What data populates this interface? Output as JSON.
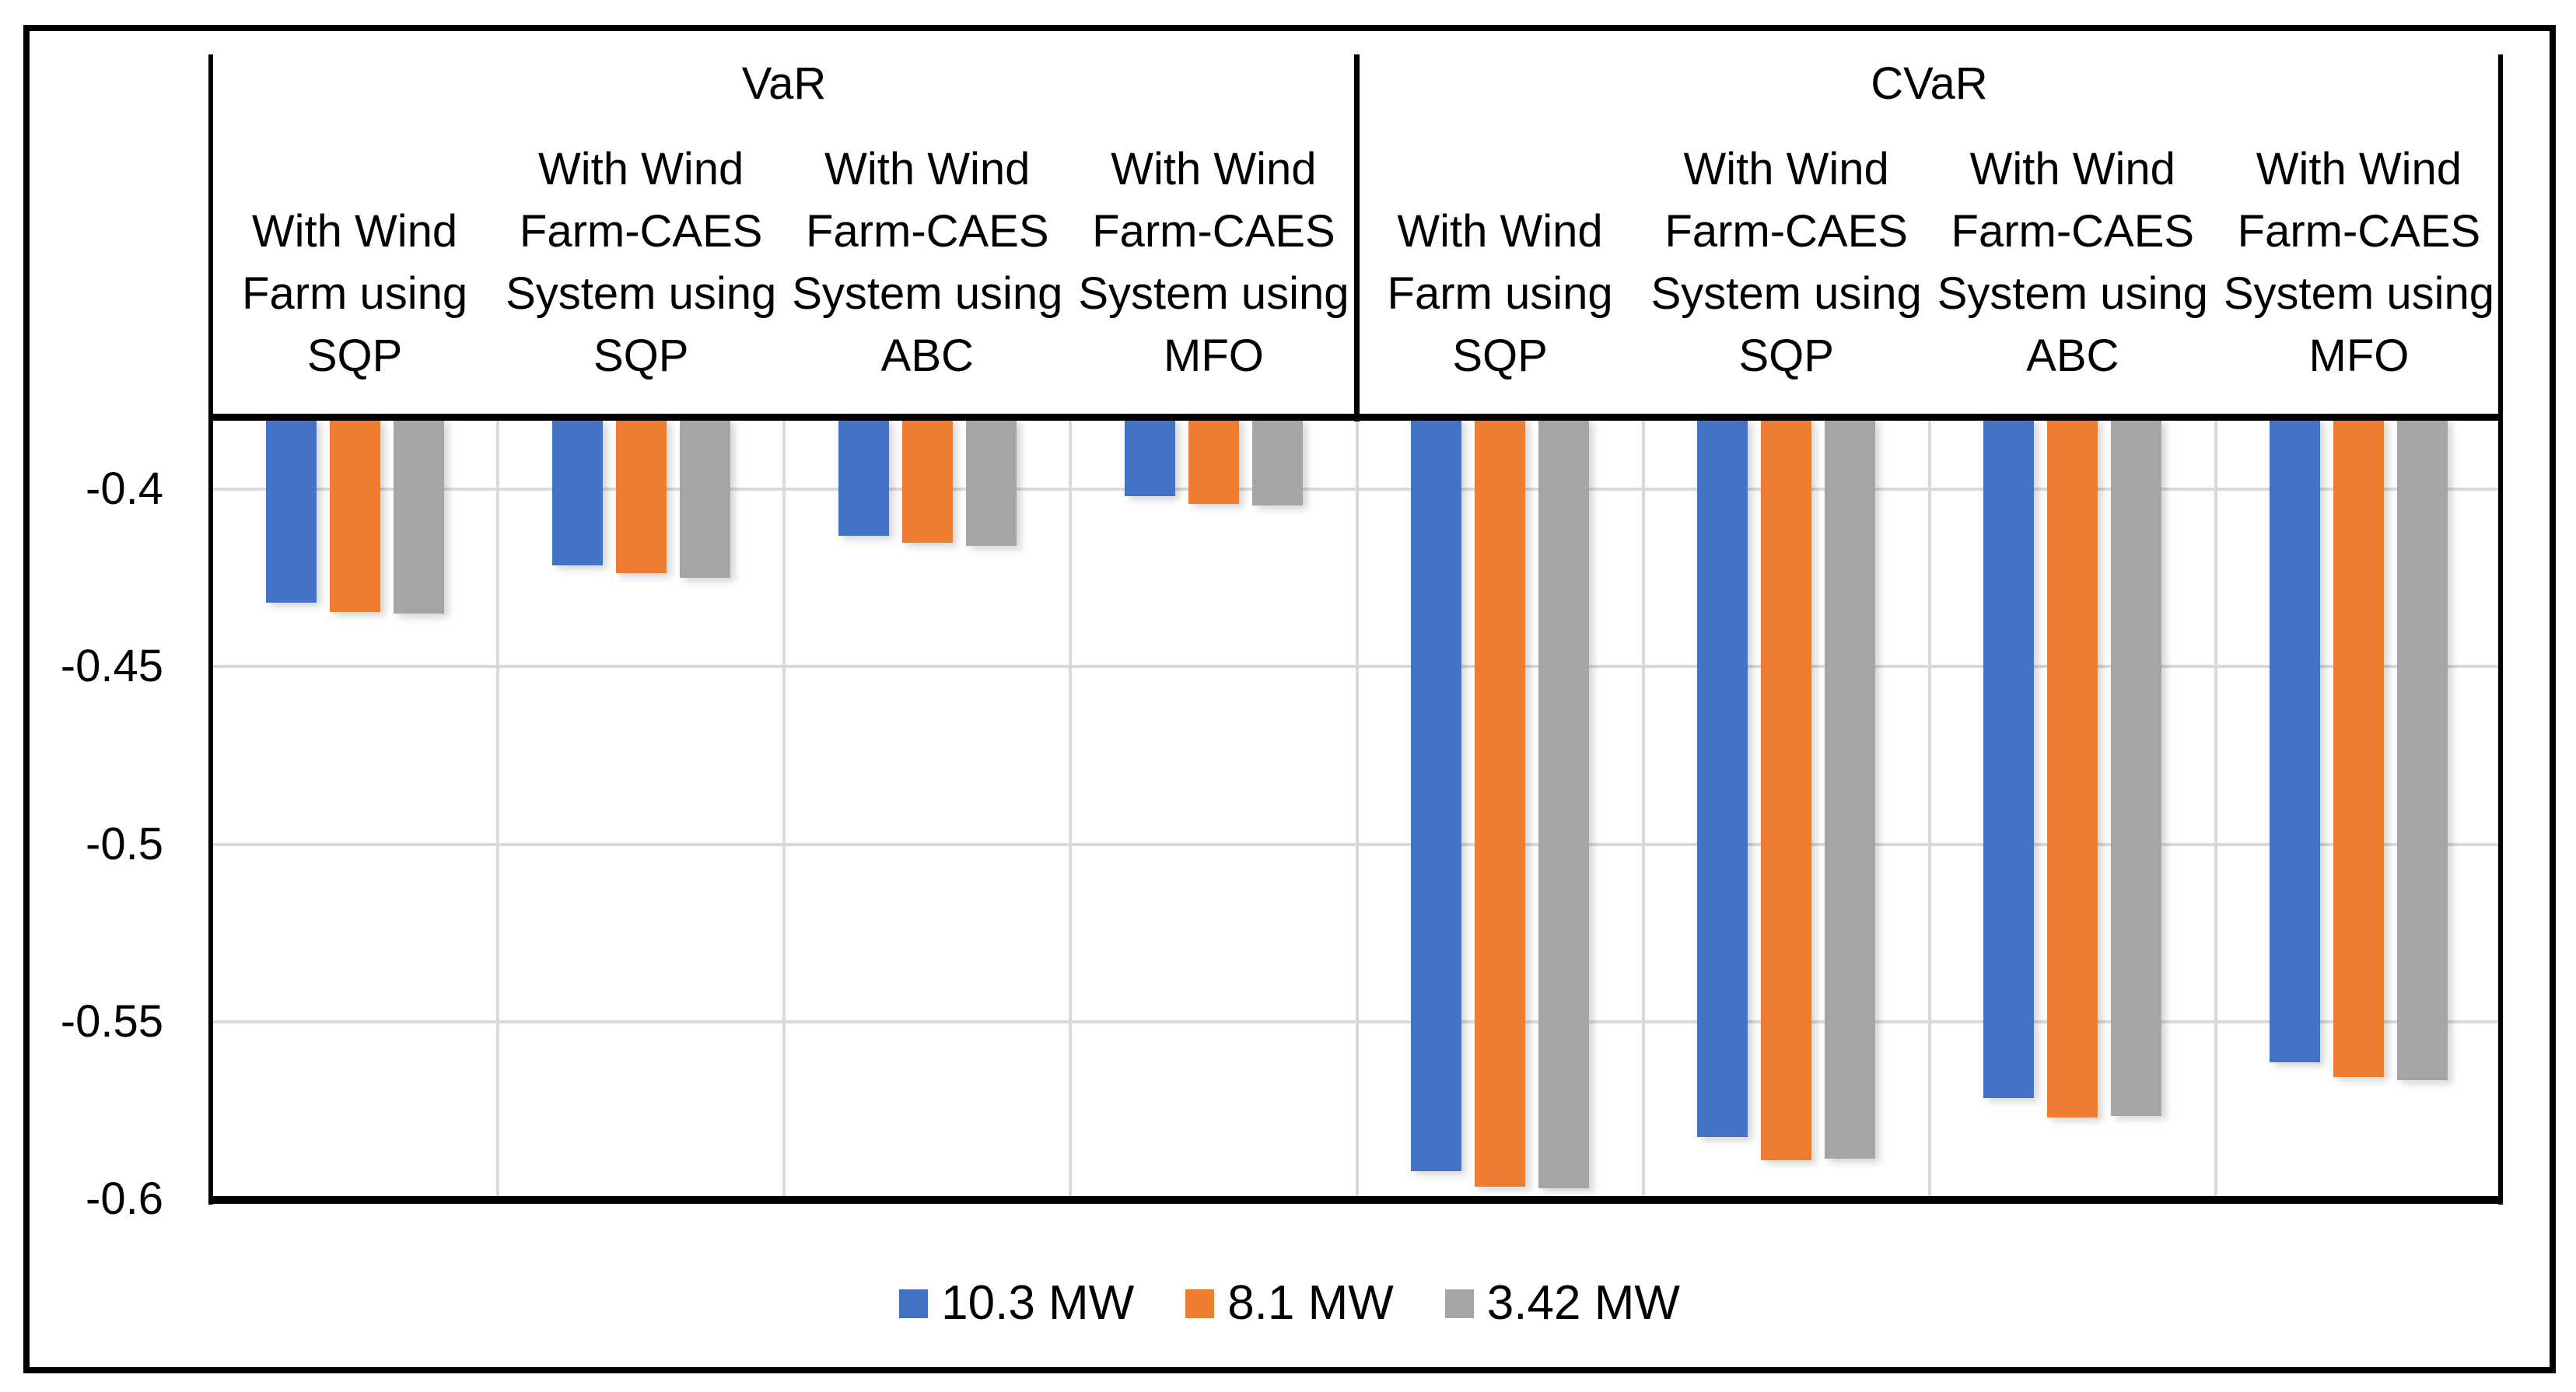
{
  "figure": {
    "background": "#FFFFFF",
    "border_color": "#000000",
    "text_color": "#000000"
  },
  "chart_data": {
    "type": "bar",
    "orientation": "vertical-negative",
    "title": "",
    "sections": [
      {
        "title": "VaR"
      },
      {
        "title": "CVaR"
      }
    ],
    "categories": [
      {
        "section": "VaR",
        "label": "With Wind Farm using SQP",
        "lines": [
          "With Wind",
          "Farm using",
          "SQP"
        ]
      },
      {
        "section": "VaR",
        "label": "With Wind Farm-CAES System using SQP",
        "lines": [
          "With Wind",
          "Farm-CAES",
          "System using",
          "SQP"
        ]
      },
      {
        "section": "VaR",
        "label": "With Wind Farm-CAES System using ABC",
        "lines": [
          "With Wind",
          "Farm-CAES",
          "System using",
          "ABC"
        ]
      },
      {
        "section": "VaR",
        "label": "With Wind Farm-CAES System using MFO",
        "lines": [
          "With Wind",
          "Farm-CAES",
          "System using",
          "MFO"
        ]
      },
      {
        "section": "CVaR",
        "label": "With Wind Farm using SQP",
        "lines": [
          "With Wind",
          "Farm using",
          "SQP"
        ]
      },
      {
        "section": "CVaR",
        "label": "With Wind Farm-CAES System using SQP",
        "lines": [
          "With Wind",
          "Farm-CAES",
          "System using",
          "SQP"
        ]
      },
      {
        "section": "CVaR",
        "label": "With Wind Farm-CAES System using ABC",
        "lines": [
          "With Wind",
          "Farm-CAES",
          "System using",
          "ABC"
        ]
      },
      {
        "section": "CVaR",
        "label": "With Wind Farm-CAES System using MFO",
        "lines": [
          "With Wind",
          "Farm-CAES",
          "System using",
          "MFO"
        ]
      }
    ],
    "series": [
      {
        "name": "10.3 MW",
        "color": "#4472C4",
        "values": [
          -0.432,
          -0.4215,
          -0.413,
          -0.402,
          -0.592,
          -0.5825,
          -0.5715,
          -0.5615
        ]
      },
      {
        "name": "8.1 MW",
        "color": "#ED7D31",
        "values": [
          -0.4345,
          -0.4235,
          -0.415,
          -0.404,
          -0.5965,
          -0.589,
          -0.577,
          -0.5655
        ]
      },
      {
        "name": "3.42 MW",
        "color": "#A5A5A5",
        "values": [
          -0.435,
          -0.425,
          -0.416,
          -0.4045,
          -0.597,
          -0.5885,
          -0.5765,
          -0.5665
        ]
      }
    ],
    "y_axis": {
      "min": -0.6,
      "max": -0.38,
      "ticks": [
        {
          "value": -0.4,
          "label": "-0.4"
        },
        {
          "value": -0.45,
          "label": "-0.45"
        },
        {
          "value": -0.5,
          "label": "-0.5"
        },
        {
          "value": -0.55,
          "label": "-0.55"
        },
        {
          "value": -0.6,
          "label": "-0.6"
        }
      ]
    },
    "grid": {
      "horizontal": true,
      "vertical": true,
      "color": "#D9D9D9"
    },
    "legend": {
      "position": "bottom",
      "items": [
        "10.3 MW",
        "8.1 MW",
        "3.42 MW"
      ]
    }
  }
}
